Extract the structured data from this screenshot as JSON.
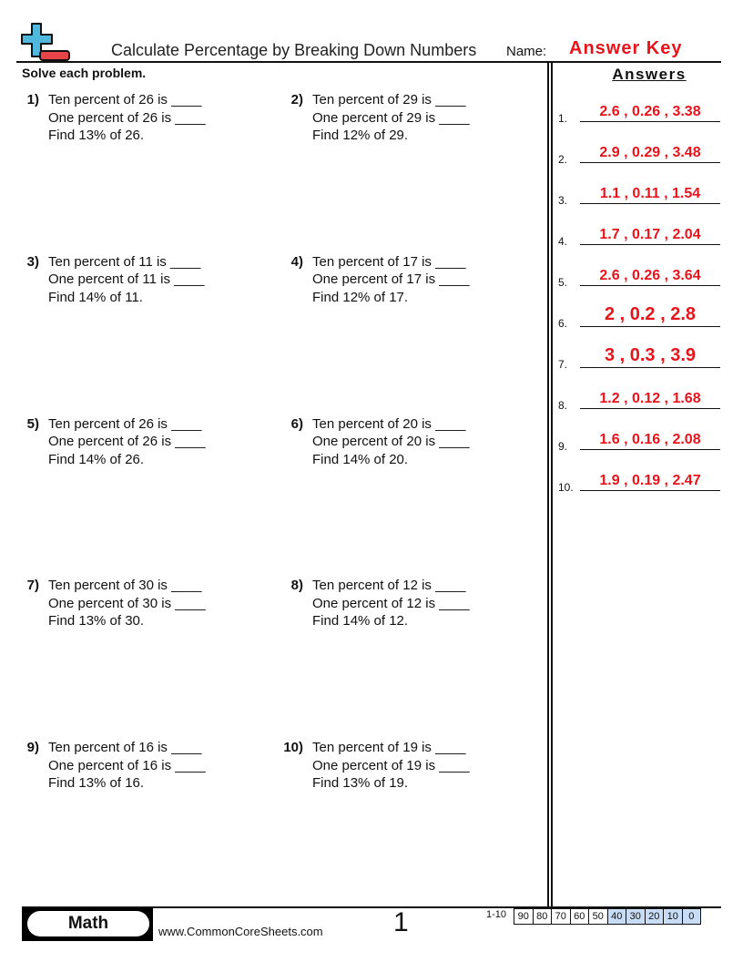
{
  "header": {
    "title": "Calculate Percentage by Breaking Down Numbers",
    "name_label": "Name:",
    "name_value": "Answer Key"
  },
  "instructions": "Solve each problem.",
  "problems": [
    {
      "num": "1)",
      "l1": "Ten percent of 26 is ____",
      "l2": "One percent of 26 is ____",
      "l3": "Find 13% of 26."
    },
    {
      "num": "2)",
      "l1": "Ten percent of 29 is ____",
      "l2": "One percent of 29 is ____",
      "l3": "Find 12% of 29."
    },
    {
      "num": "3)",
      "l1": "Ten percent of 11 is ____",
      "l2": "One percent of 11 is ____",
      "l3": "Find 14% of 11."
    },
    {
      "num": "4)",
      "l1": "Ten percent of 17 is ____",
      "l2": "One percent of 17 is ____",
      "l3": "Find 12% of 17."
    },
    {
      "num": "5)",
      "l1": "Ten percent of 26 is ____",
      "l2": "One percent of 26 is ____",
      "l3": "Find 14% of 26."
    },
    {
      "num": "6)",
      "l1": "Ten percent of 20 is ____",
      "l2": "One percent of 20 is ____",
      "l3": "Find 14% of 20."
    },
    {
      "num": "7)",
      "l1": "Ten percent of 30 is ____",
      "l2": "One percent of 30 is ____",
      "l3": "Find 13% of 30."
    },
    {
      "num": "8)",
      "l1": "Ten percent of 12 is ____",
      "l2": "One percent of 12 is ____",
      "l3": "Find 14% of 12."
    },
    {
      "num": "9)",
      "l1": "Ten percent of 16 is ____",
      "l2": "One percent of 16 is ____",
      "l3": "Find 13% of 16."
    },
    {
      "num": "10)",
      "l1": "Ten percent of 19 is ____",
      "l2": "One percent of 19 is ____",
      "l3": "Find 13% of 19."
    }
  ],
  "answers": {
    "heading": "Answers",
    "items": [
      {
        "n": "1.",
        "v": "2.6 , 0.26 , 3.38"
      },
      {
        "n": "2.",
        "v": "2.9 , 0.29 , 3.48"
      },
      {
        "n": "3.",
        "v": "1.1 , 0.11 , 1.54"
      },
      {
        "n": "4.",
        "v": "1.7 , 0.17 , 2.04"
      },
      {
        "n": "5.",
        "v": "2.6 , 0.26 , 3.64"
      },
      {
        "n": "6.",
        "v": "2 , 0.2 , 2.8"
      },
      {
        "n": "7.",
        "v": "3 , 0.3 , 3.9"
      },
      {
        "n": "8.",
        "v": "1.2 , 0.12 , 1.68"
      },
      {
        "n": "9.",
        "v": "1.6 , 0.16 , 2.08"
      },
      {
        "n": "10.",
        "v": "1.9 , 0.19 , 2.47"
      }
    ]
  },
  "footer": {
    "subject": "Math",
    "url": "www.CommonCoreSheets.com",
    "page": "1",
    "range": "1-10",
    "scores": [
      "90",
      "80",
      "70",
      "60",
      "50",
      "40",
      "30",
      "20",
      "10",
      "0"
    ]
  },
  "colors": {
    "accent": "#e8141c",
    "logo_plus": "#4fb8dc",
    "logo_minus": "#e8454a",
    "score_highlight": "#c9dcf5"
  }
}
